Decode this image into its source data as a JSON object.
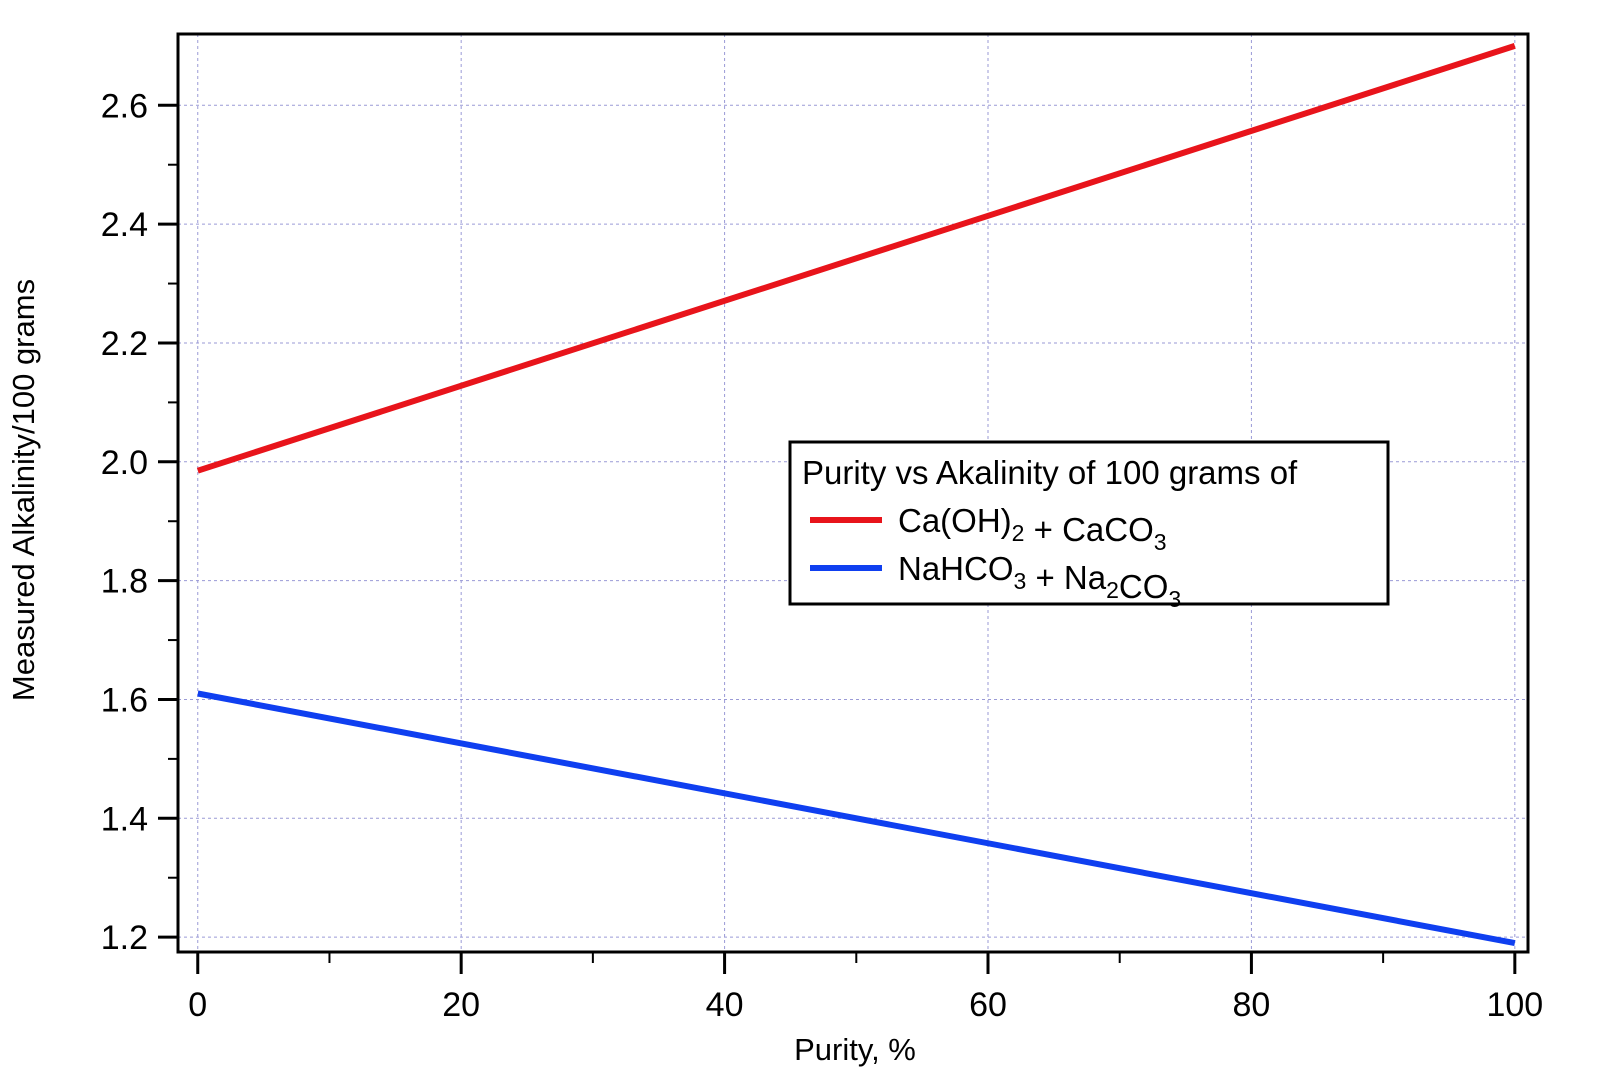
{
  "chart_data": {
    "type": "line",
    "title": "",
    "xlabel": "Purity, %",
    "ylabel": "Measured Alkalinity/100 grams",
    "xlim": [
      -1.5,
      101
    ],
    "ylim": [
      1.175,
      2.72
    ],
    "x_ticks": [
      0,
      20,
      40,
      60,
      80,
      100
    ],
    "x_tick_labels": [
      "0",
      "20",
      "40",
      "60",
      "80",
      "100"
    ],
    "y_ticks": [
      1.2,
      1.4,
      1.6,
      1.8,
      2.0,
      2.2,
      2.4,
      2.6
    ],
    "y_tick_labels": [
      "1.2",
      "1.4",
      "1.6",
      "1.8",
      "2.0",
      "2.2",
      "2.4",
      "2.6"
    ],
    "grid": true,
    "legend": {
      "title": "Purity vs Akalinity of 100 grams of",
      "placement": "center-right"
    },
    "series": [
      {
        "name": "Ca(OH)2 + CaCO3",
        "name_parts": [
          {
            "t": "Ca(OH)",
            "sub": false
          },
          {
            "t": "2",
            "sub": true
          },
          {
            "t": " + CaCO",
            "sub": false
          },
          {
            "t": "3",
            "sub": true
          }
        ],
        "color": "#e8141b",
        "x": [
          0,
          100
        ],
        "y": [
          1.985,
          2.7
        ]
      },
      {
        "name": "NaHCO3 + Na2CO3",
        "name_parts": [
          {
            "t": "NaHCO",
            "sub": false
          },
          {
            "t": "3",
            "sub": true
          },
          {
            "t": " + Na",
            "sub": false
          },
          {
            "t": "2",
            "sub": true
          },
          {
            "t": "CO",
            "sub": false
          },
          {
            "t": "3",
            "sub": true
          }
        ],
        "color": "#0f3ff0",
        "x": [
          0,
          100
        ],
        "y": [
          1.61,
          1.19
        ]
      }
    ]
  }
}
